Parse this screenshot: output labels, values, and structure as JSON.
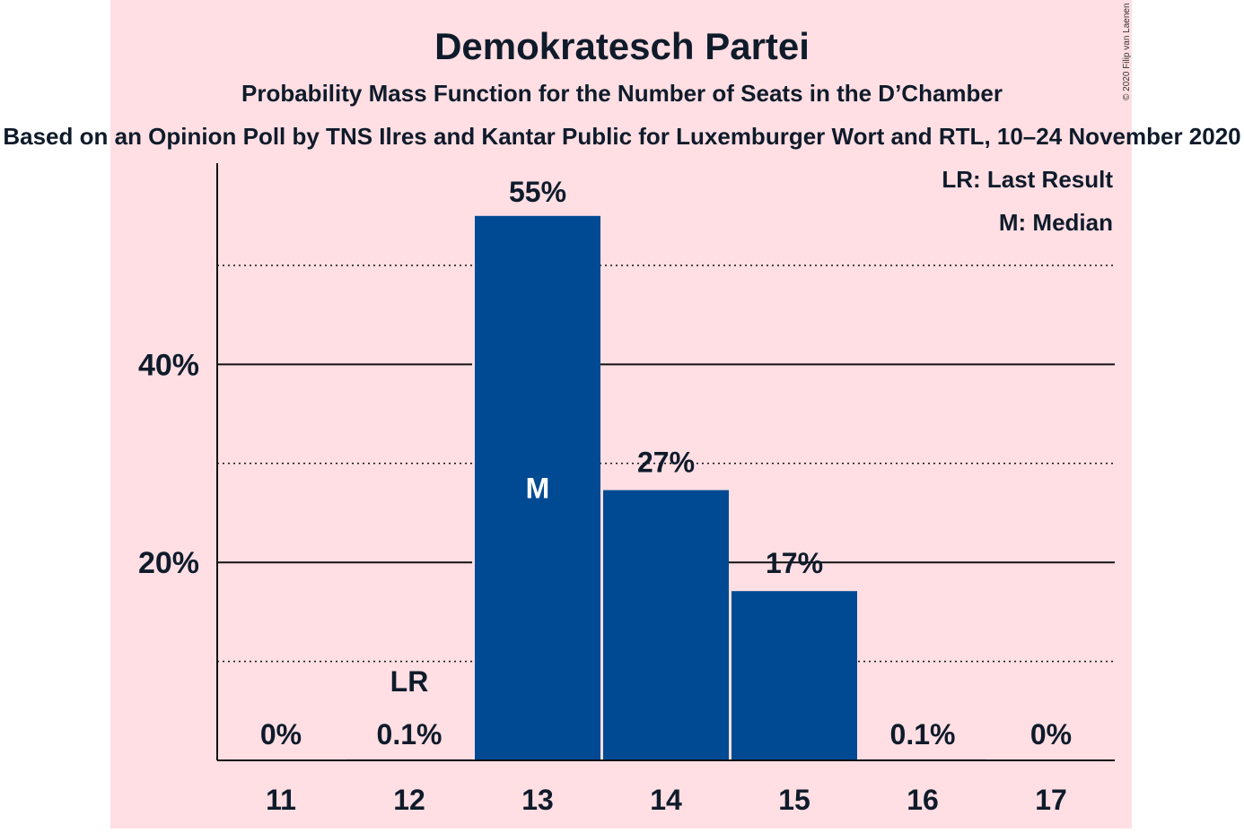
{
  "colors": {
    "band": "#ffdfe3",
    "bar": "#004a93",
    "text": "#0f1b2b"
  },
  "chart_data": {
    "type": "bar",
    "title": "Demokratesch Partei",
    "subtitle": "Probability Mass Function for the Number of Seats in the D’Chamber",
    "source": "Based on an Opinion Poll by TNS Ilres and Kantar Public for Luxemburger Wort and RTL, 10–24 November 2020",
    "copyright": "© 2020 Filip van Laenen",
    "categories": [
      "11",
      "12",
      "13",
      "14",
      "15",
      "16",
      "17"
    ],
    "values": [
      0,
      0.1,
      55,
      27.3,
      17.1,
      0.1,
      0
    ],
    "data_labels": [
      "0%",
      "0.1%",
      "55%",
      "27%",
      "17%",
      "0.1%",
      "0%"
    ],
    "ylim": [
      0,
      60
    ],
    "yticks": [
      20,
      40
    ],
    "ytick_labels": [
      "20%",
      "40%"
    ],
    "minor_gridlines": [
      10,
      30,
      50
    ],
    "last_result_index": 1,
    "last_result_label": "LR",
    "median_index": 2,
    "median_label": "M",
    "legend": [
      "LR: Last Result",
      "M: Median"
    ],
    "legend_position": "top-right"
  }
}
